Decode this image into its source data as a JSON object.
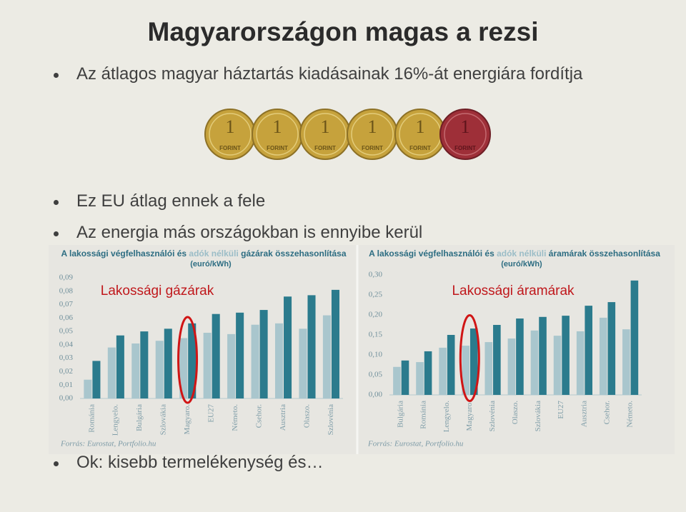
{
  "title": "Magyarországon magas a rezsi",
  "bullets": [
    "Az átlagos magyar háztartás kiadásainak 16%-át energiára fordítja",
    "Ez EU átlag ennek a fele",
    "Az energia más országokban is ennyibe kerül",
    "Ok: kisebb termelékenység és…"
  ],
  "coins": {
    "numeral": "1",
    "label": "FORINT"
  },
  "chart_data": [
    {
      "type": "bar",
      "title": [
        "A lakossági végfelhasználói és ",
        "adók nélküli",
        " gázárak összehasonlítása"
      ],
      "subtitle": "(euró/kWh)",
      "annotation": "Lakossági gázárak",
      "source": "Forrás: Eurostat, Portfolio.hu",
      "categories": [
        "Románia",
        "Lengyelo.",
        "Bulgária",
        "Szlovákia",
        "Magyaro.",
        "EU27",
        "Németo.",
        "Csehor.",
        "Ausztria",
        "Olaszo.",
        "Szlovénia"
      ],
      "series": [
        {
          "color": "#a9c6cd",
          "values": [
            0.014,
            0.038,
            0.041,
            0.043,
            0.045,
            0.049,
            0.048,
            0.055,
            0.056,
            0.052,
            0.062
          ]
        },
        {
          "color": "#2b7b8d",
          "values": [
            0.028,
            0.047,
            0.05,
            0.052,
            0.056,
            0.063,
            0.064,
            0.066,
            0.076,
            0.077,
            0.081
          ]
        }
      ],
      "ylim": [
        0,
        0.09
      ],
      "yticks": [
        {
          "value": 0,
          "label": "0,00"
        },
        {
          "value": 0.01,
          "label": "0,01"
        },
        {
          "value": 0.02,
          "label": "0,02"
        },
        {
          "value": 0.03,
          "label": "0,03"
        },
        {
          "value": 0.04,
          "label": "0,04"
        },
        {
          "value": 0.05,
          "label": "0,05"
        },
        {
          "value": 0.06,
          "label": "0,06"
        },
        {
          "value": 0.07,
          "label": "0,07"
        },
        {
          "value": 0.08,
          "label": "0,08"
        },
        {
          "value": 0.09,
          "label": "0,09"
        }
      ]
    },
    {
      "type": "bar",
      "title": [
        "A lakossági végfelhasználói és ",
        "adók nélküli",
        " áramárak összehasonlítása"
      ],
      "subtitle": "(euró/kWh)",
      "annotation": "Lakossági áramárak",
      "source": "Forrás: Eurostat, Portfolio.hu",
      "categories": [
        "Bulgária",
        "Románia",
        "Lengyelo.",
        "Magyaro.",
        "Szlovénia",
        "Olaszo.",
        "Szlovákia",
        "EU27",
        "Ausztria",
        "Csehor.",
        "Németo."
      ],
      "series": [
        {
          "color": "#a9c6cd",
          "values": [
            0.07,
            0.082,
            0.118,
            0.123,
            0.132,
            0.141,
            0.161,
            0.148,
            0.159,
            0.193,
            0.164
          ]
        },
        {
          "color": "#2b7b8d",
          "values": [
            0.086,
            0.109,
            0.15,
            0.166,
            0.175,
            0.191,
            0.195,
            0.198,
            0.223,
            0.232,
            0.286
          ]
        }
      ],
      "ylim": [
        0,
        0.3
      ],
      "yticks": [
        {
          "value": 0,
          "label": "0,00"
        },
        {
          "value": 0.05,
          "label": "0,05"
        },
        {
          "value": 0.1,
          "label": "0,10"
        },
        {
          "value": 0.15,
          "label": "0,15"
        },
        {
          "value": 0.2,
          "label": "0,20"
        },
        {
          "value": 0.25,
          "label": "0,25"
        },
        {
          "value": 0.3,
          "label": "0,30"
        }
      ]
    }
  ]
}
